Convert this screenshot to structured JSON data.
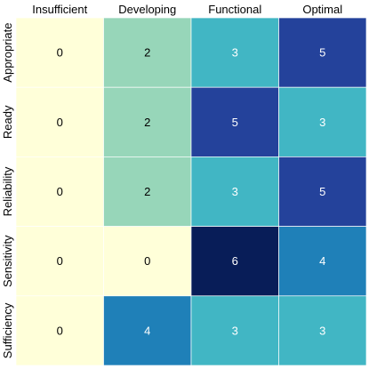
{
  "chart_data": {
    "type": "heatmap",
    "columns": [
      "Insufficient",
      "Developing",
      "Functional",
      "Optimal"
    ],
    "rows": [
      "Appropriate",
      "Ready",
      "Reliability",
      "Sensitivity",
      "Sufficiency"
    ],
    "values": [
      [
        0,
        2,
        3,
        5
      ],
      [
        0,
        2,
        5,
        3
      ],
      [
        0,
        2,
        3,
        5
      ],
      [
        0,
        0,
        6,
        4
      ],
      [
        0,
        4,
        3,
        3
      ]
    ],
    "colormap": "YlGnBu",
    "value_range": [
      0,
      6
    ],
    "column_labels_position": "top"
  }
}
